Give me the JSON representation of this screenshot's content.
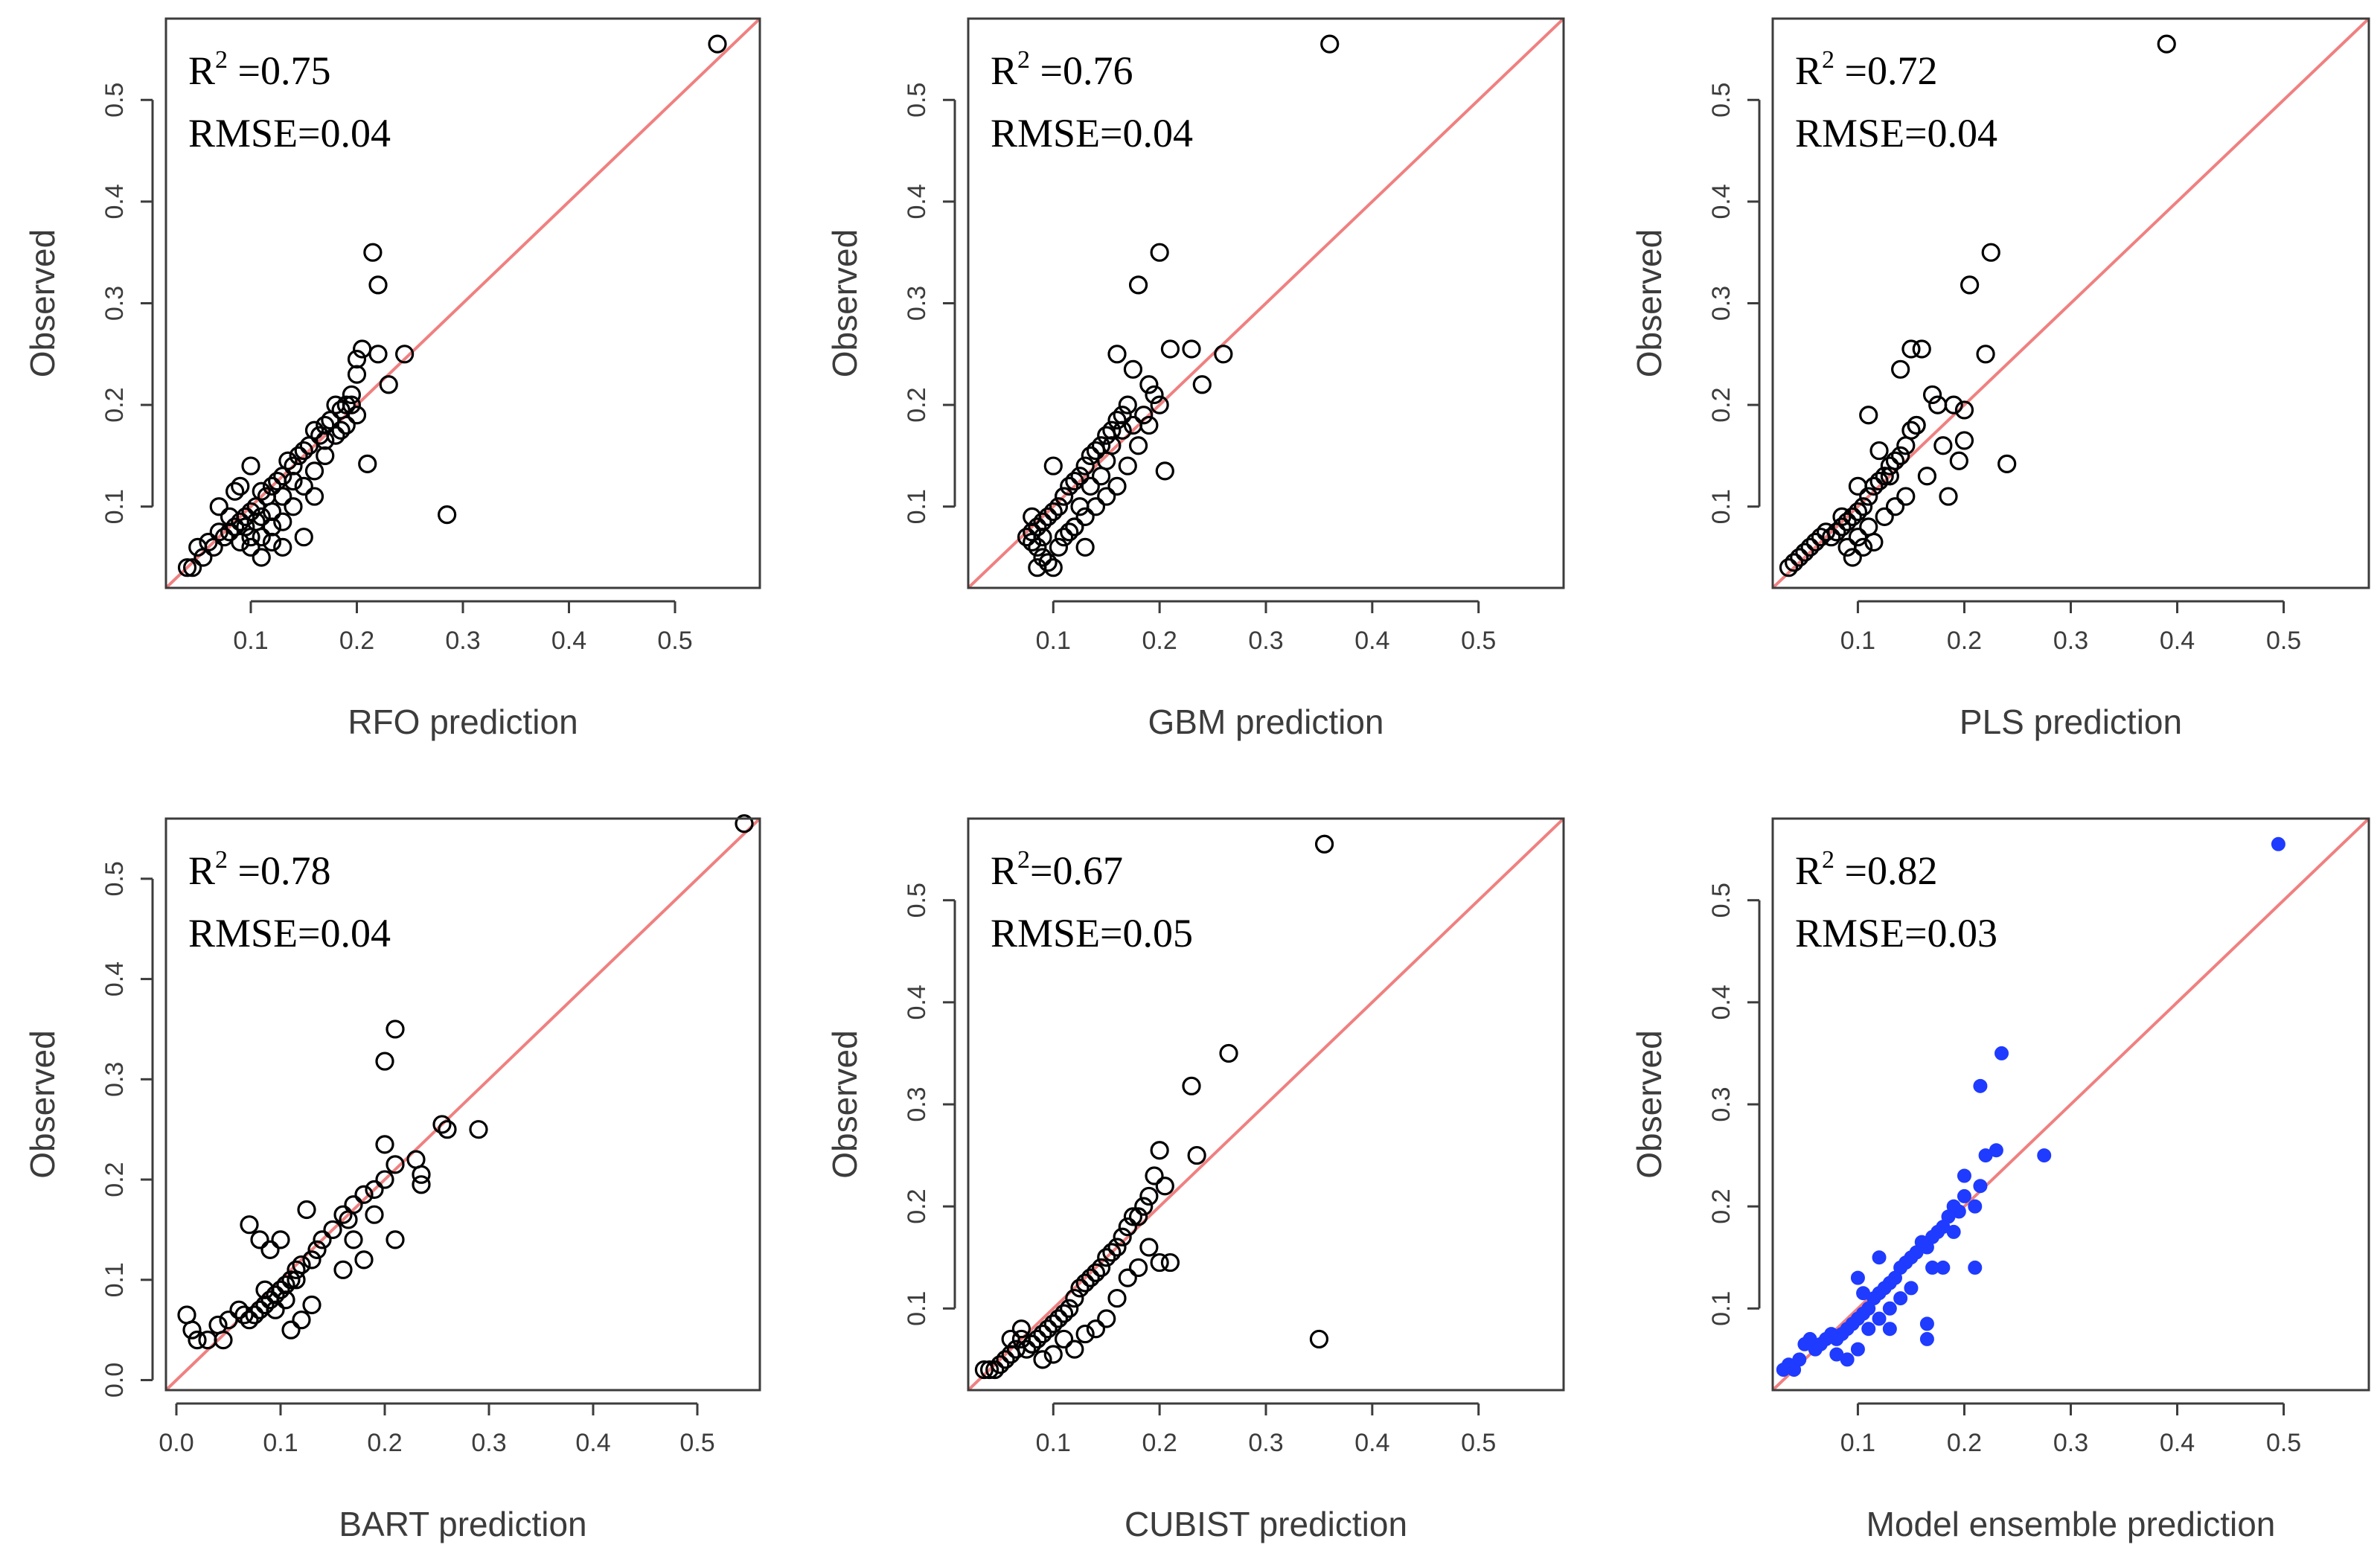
{
  "figure_title": "",
  "colors": {
    "reference_line": "#f08080",
    "ensemble_points": "#1f3bff",
    "points": "#000000",
    "axis": "#3c3c3c"
  },
  "chart_data": [
    {
      "type": "scatter",
      "title": "",
      "xlabel": "RFO prediction",
      "ylabel": "Observed",
      "annotation": {
        "r2_prefix": "R",
        "r2_sup": "2",
        "r2_value": " =0.75",
        "rmse": "RMSE=0.04"
      },
      "xlim": [
        0.02,
        0.58
      ],
      "ylim": [
        0.02,
        0.58
      ],
      "xticks": [
        0.1,
        0.2,
        0.3,
        0.4,
        0.5
      ],
      "xtick_labels": [
        "0.1",
        "0.2",
        "0.3",
        "0.4",
        "0.5"
      ],
      "yticks": [
        0.1,
        0.2,
        0.3,
        0.4,
        0.5
      ],
      "ytick_labels": [
        "0.1",
        "0.2",
        "0.3",
        "0.4",
        "0.5"
      ],
      "marker": "open",
      "reference_line": "y=x",
      "x": [
        0.54,
        0.215,
        0.22,
        0.205,
        0.2,
        0.245,
        0.22,
        0.23,
        0.19,
        0.195,
        0.2,
        0.185,
        0.18,
        0.175,
        0.17,
        0.165,
        0.16,
        0.155,
        0.15,
        0.145,
        0.14,
        0.135,
        0.13,
        0.125,
        0.12,
        0.115,
        0.11,
        0.105,
        0.1,
        0.095,
        0.09,
        0.085,
        0.08,
        0.075,
        0.07,
        0.065,
        0.06,
        0.055,
        0.05,
        0.045,
        0.04,
        0.21,
        0.285,
        0.16,
        0.15,
        0.14,
        0.13,
        0.12,
        0.11,
        0.1,
        0.09,
        0.08,
        0.07,
        0.2,
        0.19,
        0.18,
        0.17,
        0.16,
        0.15,
        0.13,
        0.12,
        0.11,
        0.1,
        0.095,
        0.09,
        0.085,
        0.1,
        0.11,
        0.105,
        0.12,
        0.13,
        0.14,
        0.17,
        0.185,
        0.195
      ],
      "y": [
        0.555,
        0.35,
        0.318,
        0.255,
        0.245,
        0.25,
        0.25,
        0.22,
        0.2,
        0.21,
        0.19,
        0.195,
        0.2,
        0.185,
        0.18,
        0.17,
        0.175,
        0.16,
        0.155,
        0.15,
        0.14,
        0.145,
        0.13,
        0.125,
        0.12,
        0.11,
        0.115,
        0.1,
        0.095,
        0.09,
        0.085,
        0.08,
        0.075,
        0.07,
        0.075,
        0.06,
        0.065,
        0.05,
        0.06,
        0.04,
        0.04,
        0.142,
        0.092,
        0.135,
        0.12,
        0.1,
        0.085,
        0.08,
        0.07,
        0.06,
        0.065,
        0.09,
        0.1,
        0.23,
        0.18,
        0.17,
        0.15,
        0.11,
        0.07,
        0.06,
        0.065,
        0.05,
        0.07,
        0.08,
        0.12,
        0.115,
        0.14,
        0.09,
        0.085,
        0.095,
        0.11,
        0.125,
        0.165,
        0.175,
        0.2
      ]
    },
    {
      "type": "scatter",
      "title": "",
      "xlabel": "GBM prediction",
      "ylabel": "Observed",
      "annotation": {
        "r2_prefix": "R",
        "r2_sup": "2",
        "r2_value": " =0.76",
        "rmse": "RMSE=0.04"
      },
      "xlim": [
        0.02,
        0.58
      ],
      "ylim": [
        0.02,
        0.58
      ],
      "xticks": [
        0.1,
        0.2,
        0.3,
        0.4,
        0.5
      ],
      "xtick_labels": [
        "0.1",
        "0.2",
        "0.3",
        "0.4",
        "0.5"
      ],
      "yticks": [
        0.1,
        0.2,
        0.3,
        0.4,
        0.5
      ],
      "ytick_labels": [
        "0.1",
        "0.2",
        "0.3",
        "0.4",
        "0.5"
      ],
      "marker": "open",
      "reference_line": "y=x",
      "x": [
        0.36,
        0.2,
        0.18,
        0.26,
        0.24,
        0.23,
        0.21,
        0.205,
        0.16,
        0.175,
        0.19,
        0.195,
        0.17,
        0.165,
        0.16,
        0.155,
        0.15,
        0.145,
        0.14,
        0.135,
        0.13,
        0.125,
        0.12,
        0.115,
        0.11,
        0.105,
        0.1,
        0.095,
        0.09,
        0.085,
        0.08,
        0.075,
        0.08,
        0.085,
        0.09,
        0.095,
        0.1,
        0.105,
        0.11,
        0.12,
        0.13,
        0.14,
        0.15,
        0.16,
        0.17,
        0.18,
        0.19,
        0.2,
        0.1,
        0.11,
        0.12,
        0.13,
        0.09,
        0.085,
        0.08,
        0.145,
        0.15,
        0.155,
        0.165,
        0.175,
        0.185,
        0.135,
        0.125,
        0.115
      ],
      "y": [
        0.555,
        0.35,
        0.318,
        0.25,
        0.22,
        0.255,
        0.255,
        0.135,
        0.25,
        0.235,
        0.22,
        0.21,
        0.2,
        0.19,
        0.185,
        0.175,
        0.17,
        0.16,
        0.155,
        0.15,
        0.14,
        0.13,
        0.125,
        0.12,
        0.11,
        0.1,
        0.095,
        0.09,
        0.085,
        0.08,
        0.075,
        0.07,
        0.065,
        0.06,
        0.05,
        0.045,
        0.04,
        0.06,
        0.07,
        0.08,
        0.09,
        0.1,
        0.11,
        0.12,
        0.14,
        0.16,
        0.18,
        0.2,
        0.14,
        0.11,
        0.08,
        0.06,
        0.07,
        0.04,
        0.09,
        0.13,
        0.145,
        0.16,
        0.175,
        0.18,
        0.19,
        0.12,
        0.1,
        0.075
      ]
    },
    {
      "type": "scatter",
      "title": "",
      "xlabel": "PLS prediction",
      "ylabel": "Observed",
      "annotation": {
        "r2_prefix": "R",
        "r2_sup": "2",
        "r2_value": " =0.72",
        "rmse": "RMSE=0.04"
      },
      "xlim": [
        0.02,
        0.58
      ],
      "ylim": [
        0.02,
        0.58
      ],
      "xticks": [
        0.1,
        0.2,
        0.3,
        0.4,
        0.5
      ],
      "xtick_labels": [
        "0.1",
        "0.2",
        "0.3",
        "0.4",
        "0.5"
      ],
      "yticks": [
        0.1,
        0.2,
        0.3,
        0.4,
        0.5
      ],
      "ytick_labels": [
        "0.1",
        "0.2",
        "0.3",
        "0.4",
        "0.5"
      ],
      "marker": "open",
      "reference_line": "y=x",
      "x": [
        0.39,
        0.225,
        0.205,
        0.15,
        0.16,
        0.22,
        0.2,
        0.24,
        0.185,
        0.14,
        0.17,
        0.175,
        0.19,
        0.2,
        0.155,
        0.15,
        0.145,
        0.14,
        0.135,
        0.13,
        0.125,
        0.12,
        0.115,
        0.11,
        0.105,
        0.1,
        0.095,
        0.09,
        0.085,
        0.08,
        0.075,
        0.07,
        0.065,
        0.06,
        0.055,
        0.05,
        0.045,
        0.04,
        0.035,
        0.11,
        0.12,
        0.13,
        0.1,
        0.09,
        0.095,
        0.105,
        0.115,
        0.125,
        0.135,
        0.145,
        0.165,
        0.18,
        0.195,
        0.155,
        0.1,
        0.11,
        0.085
      ],
      "y": [
        0.555,
        0.35,
        0.318,
        0.255,
        0.255,
        0.25,
        0.195,
        0.142,
        0.11,
        0.235,
        0.21,
        0.2,
        0.2,
        0.165,
        0.18,
        0.175,
        0.16,
        0.15,
        0.145,
        0.14,
        0.13,
        0.125,
        0.12,
        0.11,
        0.1,
        0.095,
        0.09,
        0.085,
        0.08,
        0.075,
        0.07,
        0.075,
        0.07,
        0.065,
        0.06,
        0.055,
        0.05,
        0.045,
        0.04,
        0.19,
        0.155,
        0.13,
        0.07,
        0.06,
        0.05,
        0.06,
        0.065,
        0.09,
        0.1,
        0.11,
        0.13,
        0.16,
        0.145,
        0.18,
        0.12,
        0.08,
        0.09
      ]
    },
    {
      "type": "scatter",
      "title": "",
      "xlabel": "BART prediction",
      "ylabel": "Observed",
      "annotation": {
        "r2_prefix": "R",
        "r2_sup": "2",
        "r2_value": " =0.78",
        "rmse": "RMSE=0.04"
      },
      "xlim": [
        -0.01,
        0.56
      ],
      "ylim": [
        -0.01,
        0.56
      ],
      "xticks": [
        0.0,
        0.1,
        0.2,
        0.3,
        0.4,
        0.5
      ],
      "xtick_labels": [
        "0.0",
        "0.1",
        "0.2",
        "0.3",
        "0.4",
        "0.5"
      ],
      "yticks": [
        0.0,
        0.1,
        0.2,
        0.3,
        0.4,
        0.5
      ],
      "ytick_labels": [
        "0.0",
        "0.1",
        "0.2",
        "0.3",
        "0.4",
        "0.5"
      ],
      "marker": "open",
      "reference_line": "y=x",
      "x": [
        0.545,
        0.21,
        0.2,
        0.255,
        0.26,
        0.29,
        0.235,
        0.21,
        0.2,
        0.19,
        0.18,
        0.17,
        0.165,
        0.16,
        0.15,
        0.14,
        0.135,
        0.13,
        0.12,
        0.115,
        0.11,
        0.105,
        0.1,
        0.095,
        0.09,
        0.085,
        0.08,
        0.075,
        0.07,
        0.065,
        0.06,
        0.05,
        0.045,
        0.04,
        0.03,
        0.02,
        0.015,
        0.01,
        0.07,
        0.08,
        0.09,
        0.1,
        0.11,
        0.12,
        0.13,
        0.16,
        0.17,
        0.21,
        0.18,
        0.19,
        0.125,
        0.115,
        0.105,
        0.095,
        0.085,
        0.235,
        0.23,
        0.2
      ],
      "y": [
        0.555,
        0.35,
        0.318,
        0.255,
        0.25,
        0.25,
        0.205,
        0.215,
        0.2,
        0.19,
        0.185,
        0.175,
        0.16,
        0.165,
        0.15,
        0.14,
        0.13,
        0.12,
        0.115,
        0.11,
        0.1,
        0.095,
        0.09,
        0.085,
        0.08,
        0.075,
        0.07,
        0.065,
        0.06,
        0.065,
        0.07,
        0.06,
        0.04,
        0.055,
        0.04,
        0.04,
        0.05,
        0.065,
        0.155,
        0.14,
        0.13,
        0.14,
        0.05,
        0.06,
        0.075,
        0.11,
        0.14,
        0.14,
        0.12,
        0.165,
        0.17,
        0.1,
        0.08,
        0.07,
        0.09,
        0.195,
        0.22,
        0.235
      ]
    },
    {
      "type": "scatter",
      "title": "",
      "xlabel": "CUBIST prediction",
      "ylabel": "Observed",
      "annotation": {
        "r2_prefix": "R",
        "r2_sup": "2",
        "r2_value": "=0.67",
        "rmse": "RMSE=0.05"
      },
      "xlim": [
        0.02,
        0.58
      ],
      "ylim": [
        0.02,
        0.58
      ],
      "xticks": [
        0.1,
        0.2,
        0.3,
        0.4,
        0.5
      ],
      "xtick_labels": [
        "0.1",
        "0.2",
        "0.3",
        "0.4",
        "0.5"
      ],
      "yticks": [
        0.1,
        0.2,
        0.3,
        0.4,
        0.5
      ],
      "ytick_labels": [
        "0.1",
        "0.2",
        "0.3",
        "0.4",
        "0.5"
      ],
      "marker": "open",
      "reference_line": "y=x",
      "x": [
        0.355,
        0.265,
        0.23,
        0.2,
        0.235,
        0.35,
        0.205,
        0.195,
        0.19,
        0.185,
        0.18,
        0.175,
        0.17,
        0.165,
        0.16,
        0.155,
        0.15,
        0.145,
        0.14,
        0.135,
        0.13,
        0.125,
        0.12,
        0.115,
        0.11,
        0.105,
        0.1,
        0.095,
        0.09,
        0.085,
        0.08,
        0.075,
        0.07,
        0.065,
        0.06,
        0.055,
        0.05,
        0.045,
        0.04,
        0.035,
        0.21,
        0.2,
        0.19,
        0.18,
        0.17,
        0.16,
        0.15,
        0.14,
        0.13,
        0.12,
        0.11,
        0.1,
        0.09,
        0.08,
        0.07,
        0.06
      ],
      "y": [
        0.555,
        0.35,
        0.318,
        0.255,
        0.25,
        0.07,
        0.22,
        0.23,
        0.21,
        0.2,
        0.19,
        0.19,
        0.18,
        0.17,
        0.16,
        0.155,
        0.15,
        0.14,
        0.135,
        0.13,
        0.125,
        0.12,
        0.11,
        0.1,
        0.095,
        0.09,
        0.085,
        0.08,
        0.075,
        0.07,
        0.065,
        0.06,
        0.07,
        0.06,
        0.055,
        0.05,
        0.045,
        0.04,
        0.04,
        0.04,
        0.145,
        0.145,
        0.16,
        0.14,
        0.13,
        0.11,
        0.09,
        0.08,
        0.075,
        0.06,
        0.07,
        0.055,
        0.05,
        0.065,
        0.08,
        0.07
      ]
    },
    {
      "type": "scatter",
      "title": "",
      "xlabel": "Model ensemble prediction",
      "ylabel": "Observed",
      "annotation": {
        "r2_prefix": "R",
        "r2_sup": "2",
        "r2_value": " =0.82",
        "rmse": "RMSE=0.03"
      },
      "xlim": [
        0.02,
        0.58
      ],
      "ylim": [
        0.02,
        0.58
      ],
      "xticks": [
        0.1,
        0.2,
        0.3,
        0.4,
        0.5
      ],
      "xtick_labels": [
        "0.1",
        "0.2",
        "0.3",
        "0.4",
        "0.5"
      ],
      "yticks": [
        0.1,
        0.2,
        0.3,
        0.4,
        0.5
      ],
      "ytick_labels": [
        "0.1",
        "0.2",
        "0.3",
        "0.4",
        "0.5"
      ],
      "marker": "filled",
      "reference_line": "y=x",
      "x": [
        0.495,
        0.235,
        0.215,
        0.275,
        0.23,
        0.22,
        0.215,
        0.21,
        0.2,
        0.195,
        0.19,
        0.185,
        0.18,
        0.175,
        0.17,
        0.165,
        0.16,
        0.155,
        0.15,
        0.145,
        0.14,
        0.135,
        0.13,
        0.125,
        0.12,
        0.115,
        0.11,
        0.105,
        0.1,
        0.095,
        0.09,
        0.085,
        0.08,
        0.075,
        0.07,
        0.065,
        0.06,
        0.055,
        0.05,
        0.045,
        0.04,
        0.035,
        0.03,
        0.165,
        0.18,
        0.21,
        0.2,
        0.15,
        0.14,
        0.13,
        0.12,
        0.11,
        0.1,
        0.09,
        0.08,
        0.165,
        0.17,
        0.19,
        0.12,
        0.1,
        0.13,
        0.105
      ],
      "y": [
        0.555,
        0.35,
        0.318,
        0.25,
        0.255,
        0.25,
        0.22,
        0.2,
        0.21,
        0.195,
        0.2,
        0.19,
        0.18,
        0.175,
        0.17,
        0.16,
        0.165,
        0.155,
        0.15,
        0.145,
        0.14,
        0.13,
        0.125,
        0.12,
        0.115,
        0.11,
        0.1,
        0.095,
        0.09,
        0.085,
        0.08,
        0.075,
        0.07,
        0.075,
        0.07,
        0.065,
        0.06,
        0.07,
        0.065,
        0.05,
        0.04,
        0.045,
        0.04,
        0.085,
        0.14,
        0.14,
        0.23,
        0.12,
        0.11,
        0.1,
        0.09,
        0.08,
        0.06,
        0.05,
        0.055,
        0.07,
        0.14,
        0.175,
        0.15,
        0.13,
        0.08,
        0.115
      ]
    }
  ]
}
